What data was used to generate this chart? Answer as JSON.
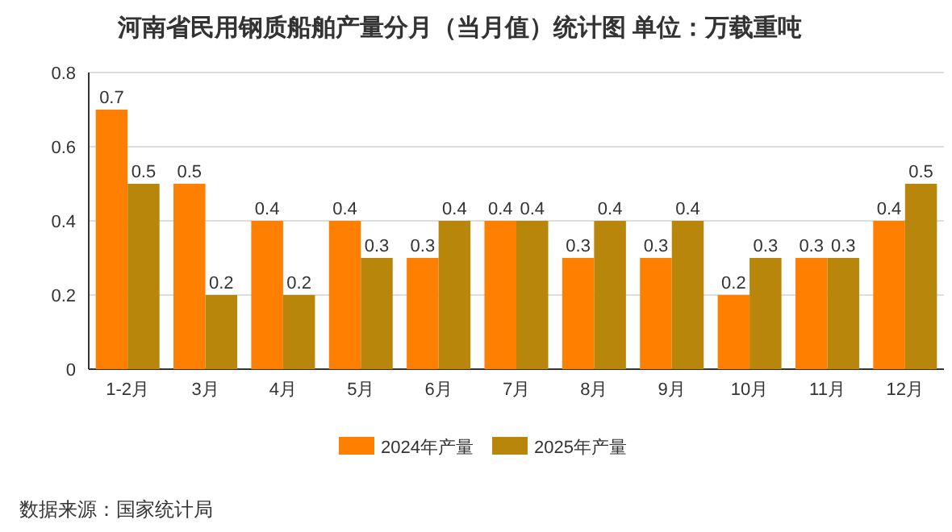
{
  "chart_data": {
    "type": "bar",
    "title": "河南省民用钢质船舶产量分月（当月值）统计图 单位：万载重吨",
    "categories": [
      "1-2月",
      "3月",
      "4月",
      "5月",
      "6月",
      "7月",
      "8月",
      "9月",
      "10月",
      "11月",
      "12月"
    ],
    "series": [
      {
        "name": "2024年产量",
        "color": "#ff8000",
        "values": [
          0.7,
          0.5,
          0.4,
          0.4,
          0.3,
          0.4,
          0.3,
          0.3,
          0.2,
          0.3,
          0.4
        ]
      },
      {
        "name": "2025年产量",
        "color": "#b8860b",
        "values": [
          0.5,
          0.2,
          0.2,
          0.3,
          0.4,
          0.4,
          0.4,
          0.4,
          0.3,
          0.3,
          0.5
        ]
      }
    ],
    "ylim": [
      0,
      0.8
    ],
    "yticks": [
      0,
      0.2,
      0.4,
      0.6,
      0.8
    ],
    "grid": "y",
    "legend": "bottom",
    "data_labels": true,
    "annotations": [
      "数据来源：国家统计局"
    ]
  }
}
